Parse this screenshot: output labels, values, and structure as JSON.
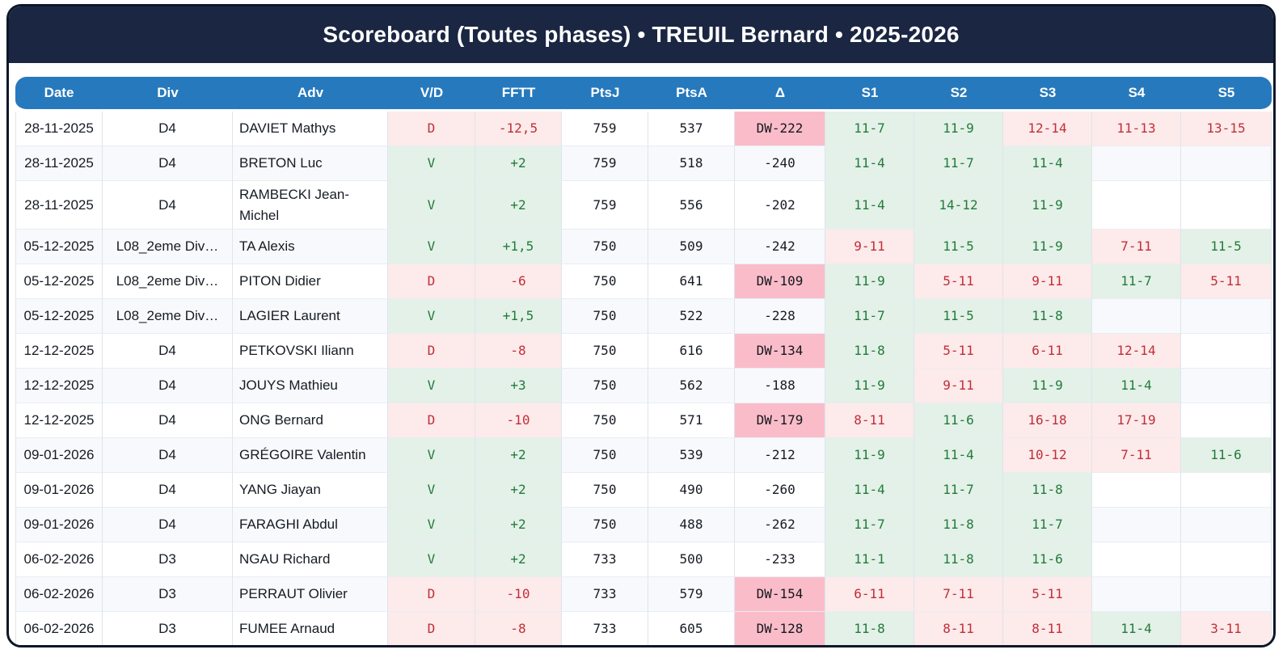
{
  "title": "Scoreboard (Toutes phases) • TREUIL Bernard • 2025-2026",
  "table": {
    "columns": [
      "Date",
      "Div",
      "Adv",
      "V/D",
      "FFTT",
      "PtsJ",
      "PtsA",
      "Δ",
      "S1",
      "S2",
      "S3",
      "S4",
      "S5"
    ],
    "rows": [
      {
        "date": "28-11-2025",
        "div": "D4",
        "adv": "DAVIET Mathys",
        "vd": "D",
        "fftt": "-12,5",
        "ptsj": "759",
        "ptsa": "537",
        "delta": "DW-222",
        "sets": [
          "11-7",
          "11-9",
          "12-14",
          "11-13",
          "13-15"
        ]
      },
      {
        "date": "28-11-2025",
        "div": "D4",
        "adv": "BRETON Luc",
        "vd": "V",
        "fftt": "+2",
        "ptsj": "759",
        "ptsa": "518",
        "delta": "-240",
        "sets": [
          "11-4",
          "11-7",
          "11-4"
        ]
      },
      {
        "date": "28-11-2025",
        "div": "D4",
        "adv": "RAMBECKI Jean-Michel",
        "vd": "V",
        "fftt": "+2",
        "ptsj": "759",
        "ptsa": "556",
        "delta": "-202",
        "sets": [
          "11-4",
          "14-12",
          "11-9"
        ]
      },
      {
        "date": "05-12-2025",
        "div": "L08_2eme Div…",
        "adv": "TA Alexis",
        "vd": "V",
        "fftt": "+1,5",
        "ptsj": "750",
        "ptsa": "509",
        "delta": "-242",
        "sets": [
          "9-11",
          "11-5",
          "11-9",
          "7-11",
          "11-5"
        ]
      },
      {
        "date": "05-12-2025",
        "div": "L08_2eme Div…",
        "adv": "PITON Didier",
        "vd": "D",
        "fftt": "-6",
        "ptsj": "750",
        "ptsa": "641",
        "delta": "DW-109",
        "sets": [
          "11-9",
          "5-11",
          "9-11",
          "11-7",
          "5-11"
        ]
      },
      {
        "date": "05-12-2025",
        "div": "L08_2eme Div…",
        "adv": "LAGIER Laurent",
        "vd": "V",
        "fftt": "+1,5",
        "ptsj": "750",
        "ptsa": "522",
        "delta": "-228",
        "sets": [
          "11-7",
          "11-5",
          "11-8"
        ]
      },
      {
        "date": "12-12-2025",
        "div": "D4",
        "adv": "PETKOVSKI Iliann",
        "vd": "D",
        "fftt": "-8",
        "ptsj": "750",
        "ptsa": "616",
        "delta": "DW-134",
        "sets": [
          "11-8",
          "5-11",
          "6-11",
          "12-14"
        ]
      },
      {
        "date": "12-12-2025",
        "div": "D4",
        "adv": "JOUYS Mathieu",
        "vd": "V",
        "fftt": "+3",
        "ptsj": "750",
        "ptsa": "562",
        "delta": "-188",
        "sets": [
          "11-9",
          "9-11",
          "11-9",
          "11-4"
        ]
      },
      {
        "date": "12-12-2025",
        "div": "D4",
        "adv": "ONG Bernard",
        "vd": "D",
        "fftt": "-10",
        "ptsj": "750",
        "ptsa": "571",
        "delta": "DW-179",
        "sets": [
          "8-11",
          "11-6",
          "16-18",
          "17-19"
        ]
      },
      {
        "date": "09-01-2026",
        "div": "D4",
        "adv": "GRÉGOIRE Valentin",
        "vd": "V",
        "fftt": "+2",
        "ptsj": "750",
        "ptsa": "539",
        "delta": "-212",
        "sets": [
          "11-9",
          "11-4",
          "10-12",
          "7-11",
          "11-6"
        ]
      },
      {
        "date": "09-01-2026",
        "div": "D4",
        "adv": "YANG Jiayan",
        "vd": "V",
        "fftt": "+2",
        "ptsj": "750",
        "ptsa": "490",
        "delta": "-260",
        "sets": [
          "11-4",
          "11-7",
          "11-8"
        ]
      },
      {
        "date": "09-01-2026",
        "div": "D4",
        "adv": "FARAGHI Abdul",
        "vd": "V",
        "fftt": "+2",
        "ptsj": "750",
        "ptsa": "488",
        "delta": "-262",
        "sets": [
          "11-7",
          "11-8",
          "11-7"
        ]
      },
      {
        "date": "06-02-2026",
        "div": "D3",
        "adv": "NGAU Richard",
        "vd": "V",
        "fftt": "+2",
        "ptsj": "733",
        "ptsa": "500",
        "delta": "-233",
        "sets": [
          "11-1",
          "11-8",
          "11-6"
        ]
      },
      {
        "date": "06-02-2026",
        "div": "D3",
        "adv": "PERRAUT Olivier",
        "vd": "D",
        "fftt": "-10",
        "ptsj": "733",
        "ptsa": "579",
        "delta": "DW-154",
        "sets": [
          "6-11",
          "7-11",
          "5-11"
        ]
      },
      {
        "date": "06-02-2026",
        "div": "D3",
        "adv": "FUMEE Arnaud",
        "vd": "D",
        "fftt": "-8",
        "ptsj": "733",
        "ptsa": "605",
        "delta": "DW-128",
        "sets": [
          "11-8",
          "8-11",
          "8-11",
          "11-4",
          "3-11"
        ]
      }
    ]
  },
  "colors": {
    "header_bg": "#1a2642",
    "table_header_bg": "#2779bd",
    "win_bg": "#e3f1e8",
    "win_text": "#237a3b",
    "loss_bg": "#fdeaea",
    "loss_text": "#bf2f3a",
    "dw_bg": "#fbbcca"
  }
}
